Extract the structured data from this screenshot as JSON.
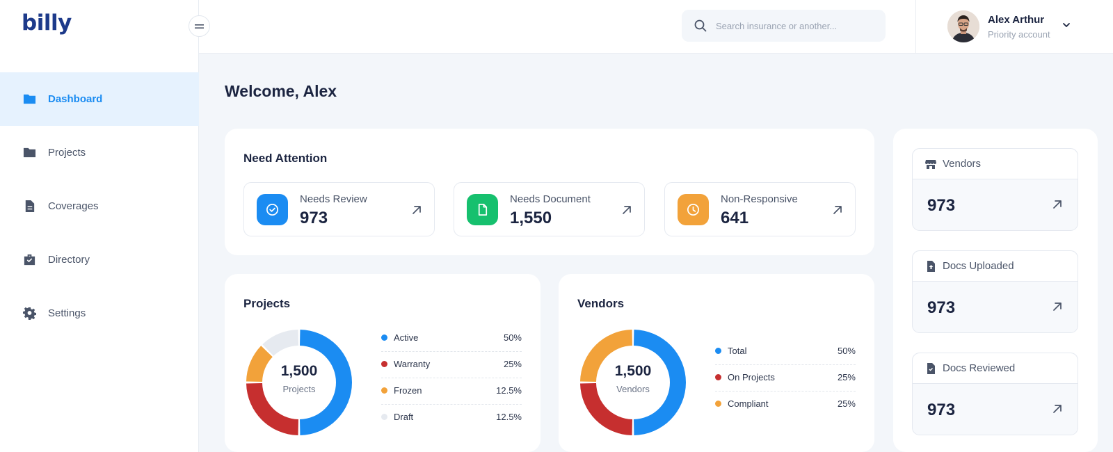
{
  "brand": {
    "logo_text": "billy"
  },
  "sidebar": {
    "items": [
      {
        "label": "Dashboard",
        "icon": "folder-icon",
        "active": true
      },
      {
        "label": "Projects",
        "icon": "folder-icon"
      },
      {
        "label": "Coverages",
        "icon": "document-icon"
      },
      {
        "label": "Directory",
        "icon": "briefcase-check-icon"
      },
      {
        "label": "Settings",
        "icon": "gear-icon"
      }
    ]
  },
  "header": {
    "search": {
      "placeholder": "Search insurance or another..."
    },
    "user": {
      "name": "Alex Arthur",
      "role": "Priority account"
    }
  },
  "main": {
    "welcome": "Welcome, Alex",
    "attention": {
      "title": "Need Attention",
      "items": [
        {
          "label": "Needs Review",
          "value": "973",
          "icon": "check-circle-icon",
          "color": "#1b8cf2"
        },
        {
          "label": "Needs Document",
          "value": "1,550",
          "icon": "document-icon",
          "color": "#16c06e"
        },
        {
          "label": "Non-Responsive",
          "value": "641",
          "icon": "clock-icon",
          "color": "#f2a23a"
        }
      ]
    },
    "projects": {
      "title": "Projects",
      "center_value": "1,500",
      "center_label": "Projects",
      "legend": [
        {
          "label": "Active",
          "value": "50%",
          "color": "#1b8cf2"
        },
        {
          "label": "Warranty",
          "value": "25%",
          "color": "#c62f2f"
        },
        {
          "label": "Frozen",
          "value": "12.5%",
          "color": "#f2a23a"
        },
        {
          "label": "Draft",
          "value": "12.5%",
          "color": "#e6eaf0"
        }
      ]
    },
    "vendors": {
      "title": "Vendors",
      "center_value": "1,500",
      "center_label": "Vendors",
      "legend": [
        {
          "label": "Total",
          "value": "50%",
          "color": "#1b8cf2"
        },
        {
          "label": "On Projects",
          "value": "25%",
          "color": "#c62f2f"
        },
        {
          "label": "Compliant",
          "value": "25%",
          "color": "#f2a23a"
        }
      ]
    },
    "stats": [
      {
        "label": "Vendors",
        "value": "973",
        "icon": "store-icon"
      },
      {
        "label": "Docs Uploaded",
        "value": "973",
        "icon": "document-upload-icon"
      },
      {
        "label": "Docs Reviewed",
        "value": "973",
        "icon": "document-check-icon"
      }
    ]
  },
  "chart_data": [
    {
      "type": "pie",
      "title": "Projects",
      "center_value": 1500,
      "categories": [
        "Active",
        "Warranty",
        "Frozen",
        "Draft"
      ],
      "values": [
        50,
        25,
        12.5,
        12.5
      ],
      "colors": [
        "#1b8cf2",
        "#c62f2f",
        "#f2a23a",
        "#e6eaf0"
      ]
    },
    {
      "type": "pie",
      "title": "Vendors",
      "center_value": 1500,
      "categories": [
        "Total",
        "On Projects",
        "Compliant"
      ],
      "values": [
        50,
        25,
        25
      ],
      "colors": [
        "#1b8cf2",
        "#c62f2f",
        "#f2a23a"
      ]
    }
  ]
}
